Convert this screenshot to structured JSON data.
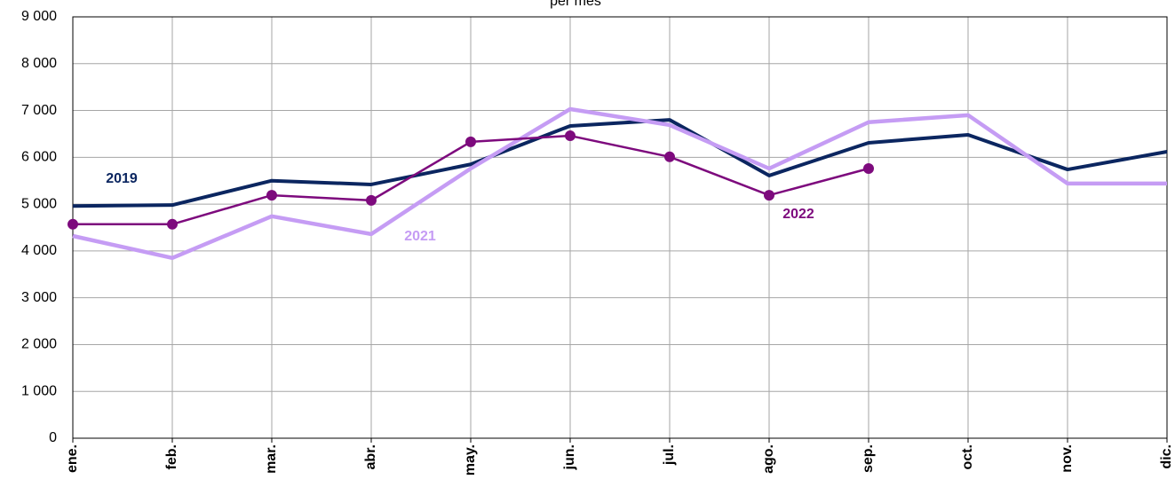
{
  "chart_data": {
    "type": "line",
    "title": "per mes",
    "categories": [
      "ene.",
      "feb.",
      "mar.",
      "abr.",
      "may.",
      "jun.",
      "jul.",
      "ago.",
      "sep.",
      "oct.",
      "nov.",
      "dic."
    ],
    "series": [
      {
        "name": "2019",
        "color": "#0b2660",
        "values": [
          4960,
          4980,
          5500,
          5420,
          5850,
          6670,
          6800,
          5610,
          6310,
          6480,
          5740,
          6120
        ]
      },
      {
        "name": "2021",
        "color": "#c59cf4",
        "values": [
          4320,
          3850,
          4740,
          4360,
          5760,
          7030,
          6690,
          5760,
          6750,
          6900,
          5440,
          5440
        ]
      },
      {
        "name": "2022",
        "color": "#7d0a7d",
        "values": [
          4570,
          4570,
          5190,
          5080,
          6330,
          6460,
          6010,
          5190,
          5760,
          null,
          null,
          null
        ]
      }
    ],
    "ylim": [
      0,
      9000
    ],
    "yticks": [
      0,
      {
        "value": 1000,
        "label": "1 000"
      },
      {
        "value": 2000,
        "label": "2 000"
      },
      {
        "value": 3000,
        "label": "3 000"
      },
      {
        "value": 4000,
        "label": "4 000"
      },
      {
        "value": 5000,
        "label": "5 000"
      },
      {
        "value": 6000,
        "label": "6 000"
      },
      {
        "value": 7000,
        "label": "7 000"
      },
      {
        "value": 8000,
        "label": "8 000"
      },
      {
        "value": 9000,
        "label": "9 000"
      }
    ],
    "grid": true
  }
}
